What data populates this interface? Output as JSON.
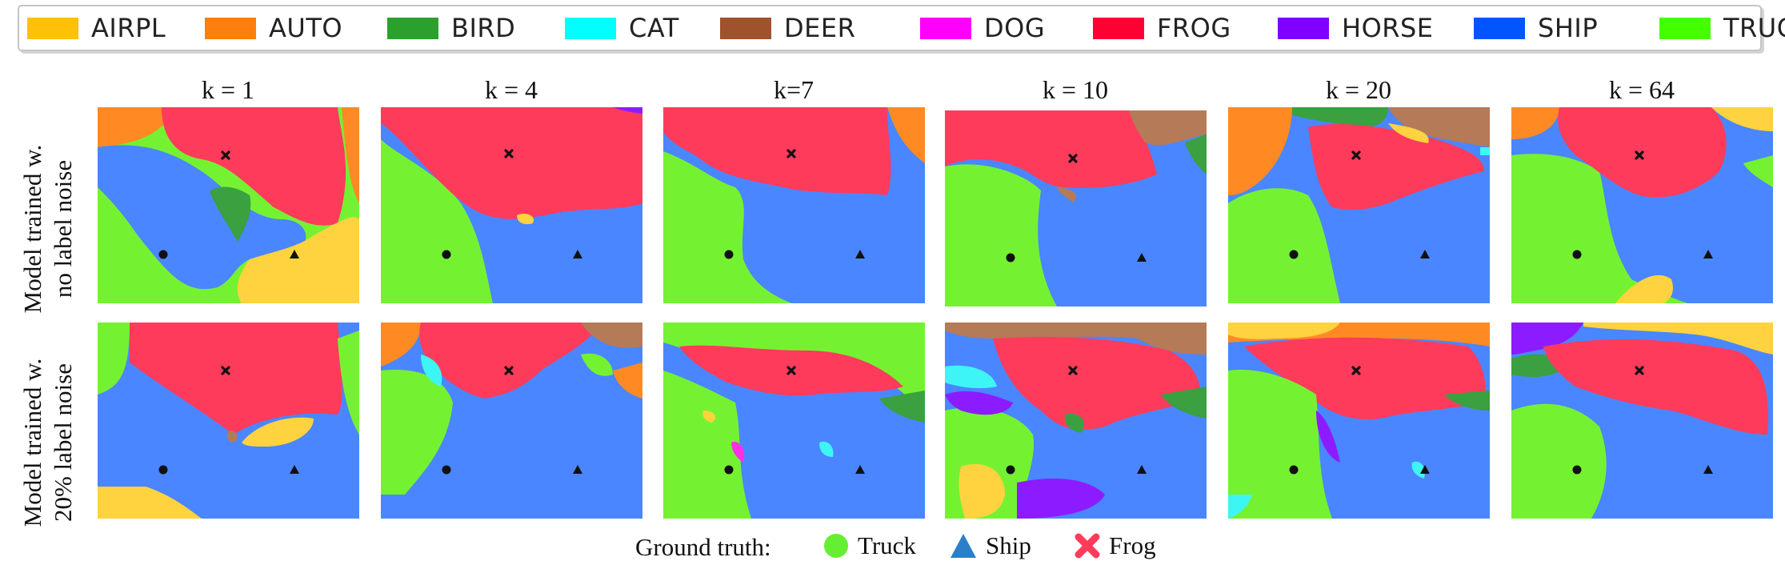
{
  "colors": {
    "airpl": "#ffd23f",
    "auto": "#ff8a24",
    "bird": "#3aa040",
    "cat": "#3ef5f5",
    "deer": "#b57a58",
    "dog": "#ff2ee8",
    "frog": "#ff3b5c",
    "horse": "#8c1cff",
    "ship": "#4a86ff",
    "truck": "#74f232"
  },
  "legend": [
    {
      "label": "AIRPL",
      "color": "#ffc107"
    },
    {
      "label": "AUTO",
      "color": "#ff7f0e"
    },
    {
      "label": "BIRD",
      "color": "#2ca02c"
    },
    {
      "label": "CAT",
      "color": "#00ffff"
    },
    {
      "label": "DEER",
      "color": "#a0522d"
    },
    {
      "label": "DOG",
      "color": "#ff00ff"
    },
    {
      "label": "FROG",
      "color": "#ff0033"
    },
    {
      "label": "HORSE",
      "color": "#7f00ff"
    },
    {
      "label": "SHIP",
      "color": "#0055ff"
    },
    {
      "label": "TRUCK",
      "color": "#44ff00"
    }
  ],
  "columns": [
    "k = 1",
    "k = 4",
    "k=7",
    "k = 10",
    "k = 20",
    "k = 64"
  ],
  "rows": [
    {
      "line1": "Model trained w.",
      "line2": "no label noise"
    },
    {
      "line1": "Model trained w.",
      "line2": "20%  label noise"
    }
  ],
  "ground_truth": {
    "title": "Ground truth:",
    "items": [
      {
        "label": "Truck",
        "marker": "circle",
        "color": "#66ee33"
      },
      {
        "label": "Ship",
        "marker": "triangle",
        "color": "#2a7fc7"
      },
      {
        "label": "Frog",
        "marker": "cross",
        "color": "#ff3b5c"
      }
    ]
  }
}
